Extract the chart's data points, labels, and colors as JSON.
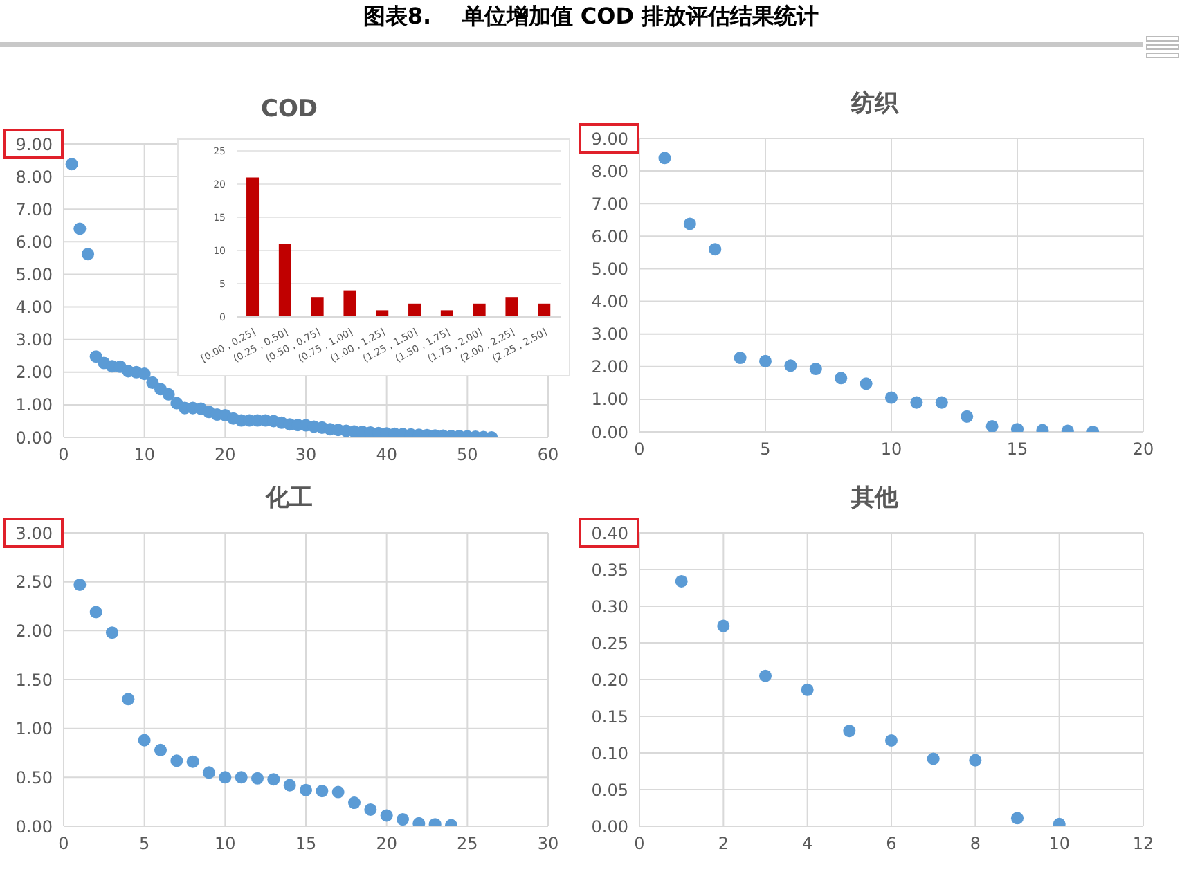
{
  "chart_data": [
    {
      "type": "scatter",
      "title": "COD",
      "annotations": [
        "图表8.    单位增加值 COD 排放评估结果统计"
      ],
      "color": "#5b9bd5",
      "marker": "circle",
      "grid": true,
      "x": [
        1,
        2,
        3,
        4,
        5,
        6,
        7,
        8,
        9,
        10,
        11,
        12,
        13,
        14,
        15,
        16,
        17,
        18,
        19,
        20,
        21,
        22,
        23,
        24,
        25,
        26,
        27,
        28,
        29,
        30,
        31,
        32,
        33,
        34,
        35,
        36,
        37,
        38,
        39,
        40,
        41,
        42,
        43,
        44,
        45,
        46,
        47,
        48,
        49,
        50,
        51,
        52,
        53
      ],
      "values": [
        8.38,
        6.4,
        5.62,
        2.48,
        2.28,
        2.18,
        2.17,
        2.03,
        2.0,
        1.95,
        1.68,
        1.48,
        1.32,
        1.05,
        0.9,
        0.9,
        0.88,
        0.78,
        0.7,
        0.68,
        0.58,
        0.52,
        0.52,
        0.52,
        0.52,
        0.5,
        0.45,
        0.4,
        0.38,
        0.37,
        0.33,
        0.3,
        0.25,
        0.23,
        0.2,
        0.18,
        0.17,
        0.15,
        0.13,
        0.12,
        0.11,
        0.1,
        0.09,
        0.08,
        0.07,
        0.06,
        0.05,
        0.04,
        0.04,
        0.03,
        0.02,
        0.01,
        0.0
      ],
      "xlim": [
        0,
        60
      ],
      "xticks": [
        0,
        10,
        20,
        30,
        40,
        50,
        60
      ],
      "ylim": [
        0,
        9
      ],
      "yticks": [
        {
          "value": 0,
          "label": "0.00"
        },
        {
          "value": 1,
          "label": "1.00"
        },
        {
          "value": 2,
          "label": "2.00"
        },
        {
          "value": 3,
          "label": "3.00"
        },
        {
          "value": 4,
          "label": "4.00"
        },
        {
          "value": 5,
          "label": "5.00"
        },
        {
          "value": 6,
          "label": "6.00"
        },
        {
          "value": 7,
          "label": "7.00"
        },
        {
          "value": 8,
          "label": "8.00"
        },
        {
          "value": 9,
          "label": "9.00"
        }
      ]
    },
    {
      "type": "bar",
      "color": "#c00000",
      "grid": "y",
      "categories": [
        "[0.00 , 0.25]",
        "(0.25 , 0.50]",
        "(0.50 , 0.75]",
        "(0.75 , 1.00]",
        "(1.00 , 1.25]",
        "(1.25 , 1.50]",
        "(1.50 , 1.75]",
        "(1.75 , 2.00]",
        "(2.00 , 2.25]",
        "(2.25 , 2.50]"
      ],
      "values": [
        21,
        11,
        3,
        4,
        1,
        2,
        1,
        2,
        3,
        2
      ],
      "ylim": [
        0,
        25
      ],
      "yticks": [
        0,
        5,
        10,
        15,
        20,
        25
      ]
    },
    {
      "type": "scatter",
      "title": "纺织",
      "color": "#5b9bd5",
      "marker": "circle",
      "grid": true,
      "x": [
        1,
        2,
        3,
        4,
        5,
        6,
        7,
        8,
        9,
        10,
        11,
        12,
        13,
        14,
        15,
        16,
        17,
        18
      ],
      "values": [
        8.4,
        6.38,
        5.6,
        2.27,
        2.17,
        2.03,
        1.93,
        1.65,
        1.48,
        1.05,
        0.9,
        0.9,
        0.47,
        0.17,
        0.08,
        0.05,
        0.03,
        0.0
      ],
      "xlim": [
        0,
        20
      ],
      "xticks": [
        0,
        5,
        10,
        15,
        20
      ],
      "ylim": [
        0,
        9
      ],
      "yticks": [
        {
          "value": 0,
          "label": "0.00"
        },
        {
          "value": 1,
          "label": "1.00"
        },
        {
          "value": 2,
          "label": "2.00"
        },
        {
          "value": 3,
          "label": "3.00"
        },
        {
          "value": 4,
          "label": "4.00"
        },
        {
          "value": 5,
          "label": "5.00"
        },
        {
          "value": 6,
          "label": "6.00"
        },
        {
          "value": 7,
          "label": "7.00"
        },
        {
          "value": 8,
          "label": "8.00"
        },
        {
          "value": 9,
          "label": "9.00"
        }
      ]
    },
    {
      "type": "scatter",
      "title": "化工",
      "color": "#5b9bd5",
      "marker": "circle",
      "grid": true,
      "x": [
        1,
        2,
        3,
        4,
        5,
        6,
        7,
        8,
        9,
        10,
        11,
        12,
        13,
        14,
        15,
        16,
        17,
        18,
        19,
        20,
        21,
        22,
        23,
        24
      ],
      "values": [
        2.47,
        2.19,
        1.98,
        1.3,
        0.88,
        0.78,
        0.67,
        0.66,
        0.55,
        0.5,
        0.5,
        0.49,
        0.48,
        0.42,
        0.37,
        0.36,
        0.35,
        0.24,
        0.17,
        0.11,
        0.07,
        0.03,
        0.02,
        0.01
      ],
      "xlim": [
        0,
        30
      ],
      "xticks": [
        0,
        5,
        10,
        15,
        20,
        25,
        30
      ],
      "ylim": [
        0,
        3
      ],
      "yticks": [
        {
          "value": 0,
          "label": "0.00"
        },
        {
          "value": 0.5,
          "label": "0.50"
        },
        {
          "value": 1,
          "label": "1.00"
        },
        {
          "value": 1.5,
          "label": "1.50"
        },
        {
          "value": 2,
          "label": "2.00"
        },
        {
          "value": 2.5,
          "label": "2.50"
        },
        {
          "value": 3,
          "label": "3.00"
        }
      ]
    },
    {
      "type": "scatter",
      "title": "其他",
      "color": "#5b9bd5",
      "marker": "circle",
      "grid": true,
      "x": [
        1,
        2,
        3,
        4,
        5,
        6,
        7,
        8,
        9,
        10
      ],
      "values": [
        0.334,
        0.273,
        0.205,
        0.186,
        0.13,
        0.117,
        0.092,
        0.09,
        0.011,
        0.003
      ],
      "xlim": [
        0,
        12
      ],
      "xticks": [
        0,
        2,
        4,
        6,
        8,
        10,
        12
      ],
      "ylim": [
        0,
        0.4
      ],
      "yticks": [
        {
          "value": 0,
          "label": "0.00"
        },
        {
          "value": 0.05,
          "label": "0.05"
        },
        {
          "value": 0.1,
          "label": "0.10"
        },
        {
          "value": 0.15,
          "label": "0.15"
        },
        {
          "value": 0.2,
          "label": "0.20"
        },
        {
          "value": 0.25,
          "label": "0.25"
        },
        {
          "value": 0.3,
          "label": "0.30"
        },
        {
          "value": 0.35,
          "label": "0.35"
        },
        {
          "value": 0.4,
          "label": "0.40"
        }
      ]
    }
  ]
}
